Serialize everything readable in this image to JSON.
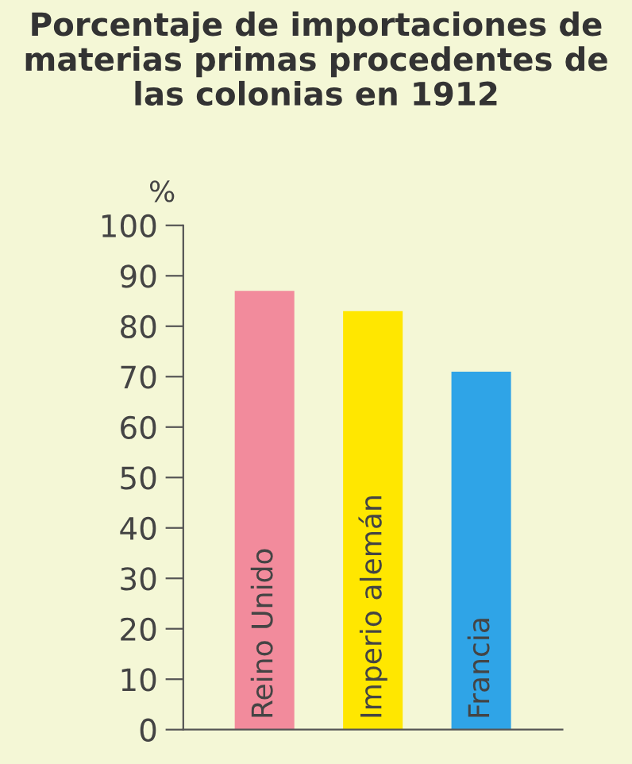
{
  "chart_data": {
    "type": "bar",
    "title": "Porcentaje de importaciones de materias primas procedentes de las colonias en 1912",
    "ylabel": "%",
    "categories": [
      "Reino Unido",
      "Imperio alemán",
      "Francia"
    ],
    "values": [
      87,
      83,
      71
    ],
    "colors": [
      "#f28b9c",
      "#ffe700",
      "#2fa4e7"
    ],
    "ylim": [
      0,
      100
    ],
    "yticks": [
      0,
      10,
      20,
      30,
      40,
      50,
      60,
      70,
      80,
      90,
      100
    ],
    "grid": false
  }
}
